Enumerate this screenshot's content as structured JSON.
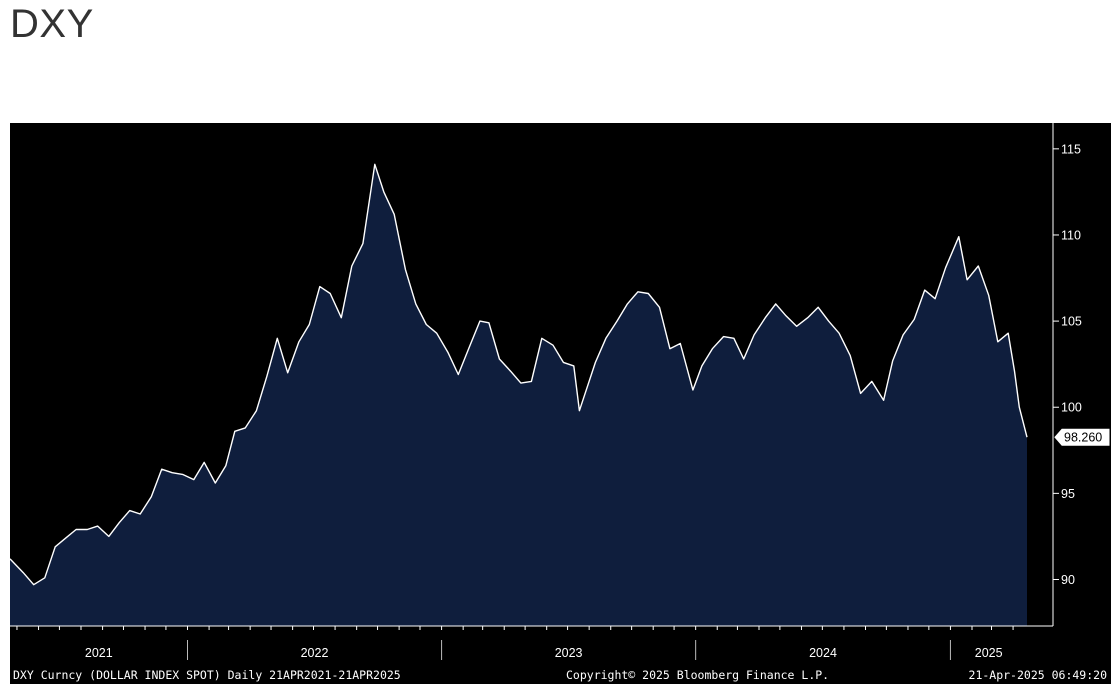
{
  "header": {
    "title": "DXY"
  },
  "footer": {
    "ticker": "DXY Curncy (DOLLAR INDEX SPOT)  Daily 21APR2021-21APR2025",
    "copyright": "Copyright© 2025 Bloomberg Finance L.P.",
    "timestamp": "21-Apr-2025 06:49:20"
  },
  "colors": {
    "background": "#000000",
    "area_fill": "#0f1e3d",
    "line": "#ffffff",
    "axis": "#ffffff"
  },
  "chart_data": {
    "type": "area",
    "title": "DXY",
    "xlabel": "",
    "ylabel": "",
    "x_range": [
      "2021-04-21",
      "2025-04-21"
    ],
    "ylim": [
      87.3,
      116.5
    ],
    "y_ticks": [
      90,
      95,
      100,
      105,
      110,
      115
    ],
    "x_tick_labels": [
      "2021",
      "2022",
      "2023",
      "2024",
      "2025"
    ],
    "last_value_label": "98.260",
    "grid": false,
    "series": [
      {
        "name": "",
        "points": [
          [
            "2021-04-21",
            91.2
          ],
          [
            "2021-05-10",
            90.4
          ],
          [
            "2021-05-25",
            89.7
          ],
          [
            "2021-06-10",
            90.1
          ],
          [
            "2021-06-25",
            91.9
          ],
          [
            "2021-07-10",
            92.4
          ],
          [
            "2021-07-25",
            92.9
          ],
          [
            "2021-08-10",
            92.9
          ],
          [
            "2021-08-25",
            93.1
          ],
          [
            "2021-09-10",
            92.5
          ],
          [
            "2021-09-25",
            93.3
          ],
          [
            "2021-10-10",
            94.0
          ],
          [
            "2021-10-25",
            93.8
          ],
          [
            "2021-11-10",
            94.8
          ],
          [
            "2021-11-25",
            96.4
          ],
          [
            "2021-12-10",
            96.2
          ],
          [
            "2021-12-25",
            96.1
          ],
          [
            "2022-01-10",
            95.8
          ],
          [
            "2022-01-25",
            96.8
          ],
          [
            "2022-02-10",
            95.6
          ],
          [
            "2022-02-25",
            96.6
          ],
          [
            "2022-03-10",
            98.6
          ],
          [
            "2022-03-25",
            98.8
          ],
          [
            "2022-04-10",
            99.8
          ],
          [
            "2022-04-25",
            101.8
          ],
          [
            "2022-05-10",
            104.0
          ],
          [
            "2022-05-25",
            102.0
          ],
          [
            "2022-06-10",
            103.8
          ],
          [
            "2022-06-25",
            104.8
          ],
          [
            "2022-07-10",
            107.0
          ],
          [
            "2022-07-25",
            106.6
          ],
          [
            "2022-08-10",
            105.2
          ],
          [
            "2022-08-25",
            108.2
          ],
          [
            "2022-09-10",
            109.5
          ],
          [
            "2022-09-27",
            114.1
          ],
          [
            "2022-10-10",
            112.5
          ],
          [
            "2022-10-25",
            111.2
          ],
          [
            "2022-11-10",
            108.0
          ],
          [
            "2022-11-25",
            106.0
          ],
          [
            "2022-12-10",
            104.8
          ],
          [
            "2022-12-25",
            104.3
          ],
          [
            "2023-01-10",
            103.2
          ],
          [
            "2023-01-25",
            101.9
          ],
          [
            "2023-02-10",
            103.5
          ],
          [
            "2023-02-25",
            105.0
          ],
          [
            "2023-03-10",
            104.9
          ],
          [
            "2023-03-25",
            102.8
          ],
          [
            "2023-04-10",
            102.1
          ],
          [
            "2023-04-25",
            101.4
          ],
          [
            "2023-05-10",
            101.5
          ],
          [
            "2023-05-25",
            104.0
          ],
          [
            "2023-06-10",
            103.6
          ],
          [
            "2023-06-25",
            102.6
          ],
          [
            "2023-07-10",
            102.4
          ],
          [
            "2023-07-18",
            99.8
          ],
          [
            "2023-08-10",
            102.6
          ],
          [
            "2023-08-25",
            104.0
          ],
          [
            "2023-09-10",
            105.0
          ],
          [
            "2023-09-25",
            106.0
          ],
          [
            "2023-10-10",
            106.7
          ],
          [
            "2023-10-25",
            106.6
          ],
          [
            "2023-11-10",
            105.8
          ],
          [
            "2023-11-25",
            103.4
          ],
          [
            "2023-12-10",
            103.7
          ],
          [
            "2023-12-28",
            101.0
          ],
          [
            "2024-01-10",
            102.4
          ],
          [
            "2024-01-25",
            103.4
          ],
          [
            "2024-02-10",
            104.1
          ],
          [
            "2024-02-25",
            104.0
          ],
          [
            "2024-03-10",
            102.8
          ],
          [
            "2024-03-25",
            104.2
          ],
          [
            "2024-04-10",
            105.2
          ],
          [
            "2024-04-25",
            106.0
          ],
          [
            "2024-05-10",
            105.3
          ],
          [
            "2024-05-25",
            104.7
          ],
          [
            "2024-06-10",
            105.2
          ],
          [
            "2024-06-25",
            105.8
          ],
          [
            "2024-07-10",
            105.0
          ],
          [
            "2024-07-25",
            104.3
          ],
          [
            "2024-08-10",
            103.0
          ],
          [
            "2024-08-25",
            100.8
          ],
          [
            "2024-09-10",
            101.5
          ],
          [
            "2024-09-27",
            100.4
          ],
          [
            "2024-10-10",
            102.7
          ],
          [
            "2024-10-25",
            104.2
          ],
          [
            "2024-11-10",
            105.1
          ],
          [
            "2024-11-25",
            106.8
          ],
          [
            "2024-12-10",
            106.3
          ],
          [
            "2024-12-25",
            108.1
          ],
          [
            "2025-01-13",
            109.9
          ],
          [
            "2025-01-25",
            107.4
          ],
          [
            "2025-02-10",
            108.2
          ],
          [
            "2025-02-25",
            106.5
          ],
          [
            "2025-03-10",
            103.8
          ],
          [
            "2025-03-25",
            104.3
          ],
          [
            "2025-04-03",
            102.1
          ],
          [
            "2025-04-10",
            100.0
          ],
          [
            "2025-04-21",
            98.26
          ]
        ]
      }
    ]
  }
}
